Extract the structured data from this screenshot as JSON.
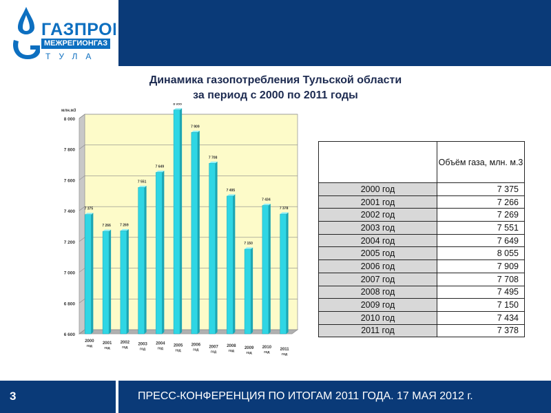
{
  "header": {
    "logo_name": "ГАЗПРОМ",
    "logo_sub": "МЕЖРЕГИОНГАЗ",
    "logo_city": "ТУЛА"
  },
  "title": {
    "line1": "Динамика газопотребления Тульской области",
    "line2": "за период с 2000 по 2011 годы"
  },
  "table": {
    "header": "Объём газа, млн. м.3",
    "rows": [
      {
        "year": "2000 год",
        "value": "7 375"
      },
      {
        "year": "2001 год",
        "value": "7 266"
      },
      {
        "year": "2002 год",
        "value": "7 269"
      },
      {
        "year": "2003 год",
        "value": "7 551"
      },
      {
        "year": "2004 год",
        "value": "7 649"
      },
      {
        "year": "2005 год",
        "value": "8 055"
      },
      {
        "year": "2006 год",
        "value": "7 909"
      },
      {
        "year": "2007 год",
        "value": "7 708"
      },
      {
        "year": "2008 год",
        "value": "7 495"
      },
      {
        "year": "2009 год",
        "value": "7 150"
      },
      {
        "year": "2010 год",
        "value": "7 434"
      },
      {
        "year": "2011 год",
        "value": "7 378"
      }
    ]
  },
  "chart_data": {
    "type": "bar",
    "ylabel": "млн.м3",
    "ylim": [
      6600,
      8000
    ],
    "yticks": [
      "6 600",
      "6 800",
      "7 000",
      "7 200",
      "7 400",
      "7 600",
      "7 800",
      "8 000"
    ],
    "categories": [
      "2000 год",
      "2001 год",
      "2002 год",
      "2003 год",
      "2004 год",
      "2005 год",
      "2006 год",
      "2007 год",
      "2008 год",
      "2009 год",
      "2010 год",
      "2011 год"
    ],
    "values": [
      7375,
      7266,
      7269,
      7551,
      7649,
      8055,
      7909,
      7708,
      7495,
      7150,
      7434,
      7378
    ],
    "value_labels": [
      "7 375",
      "7 266",
      "7 269",
      "7 551",
      "7 649",
      "8 055",
      "7 909",
      "7 708",
      "7 495",
      "7 150",
      "7 434",
      "7 378"
    ],
    "bar_color": "#2fd6e4",
    "wall_color": "#fdfbc9",
    "grid": true
  },
  "footer": {
    "page": "3",
    "text": "ПРЕСС-КОНФЕРЕНЦИЯ ПО ИТОГАМ 2011 ГОДА. 17 МАЯ 2012 г."
  }
}
